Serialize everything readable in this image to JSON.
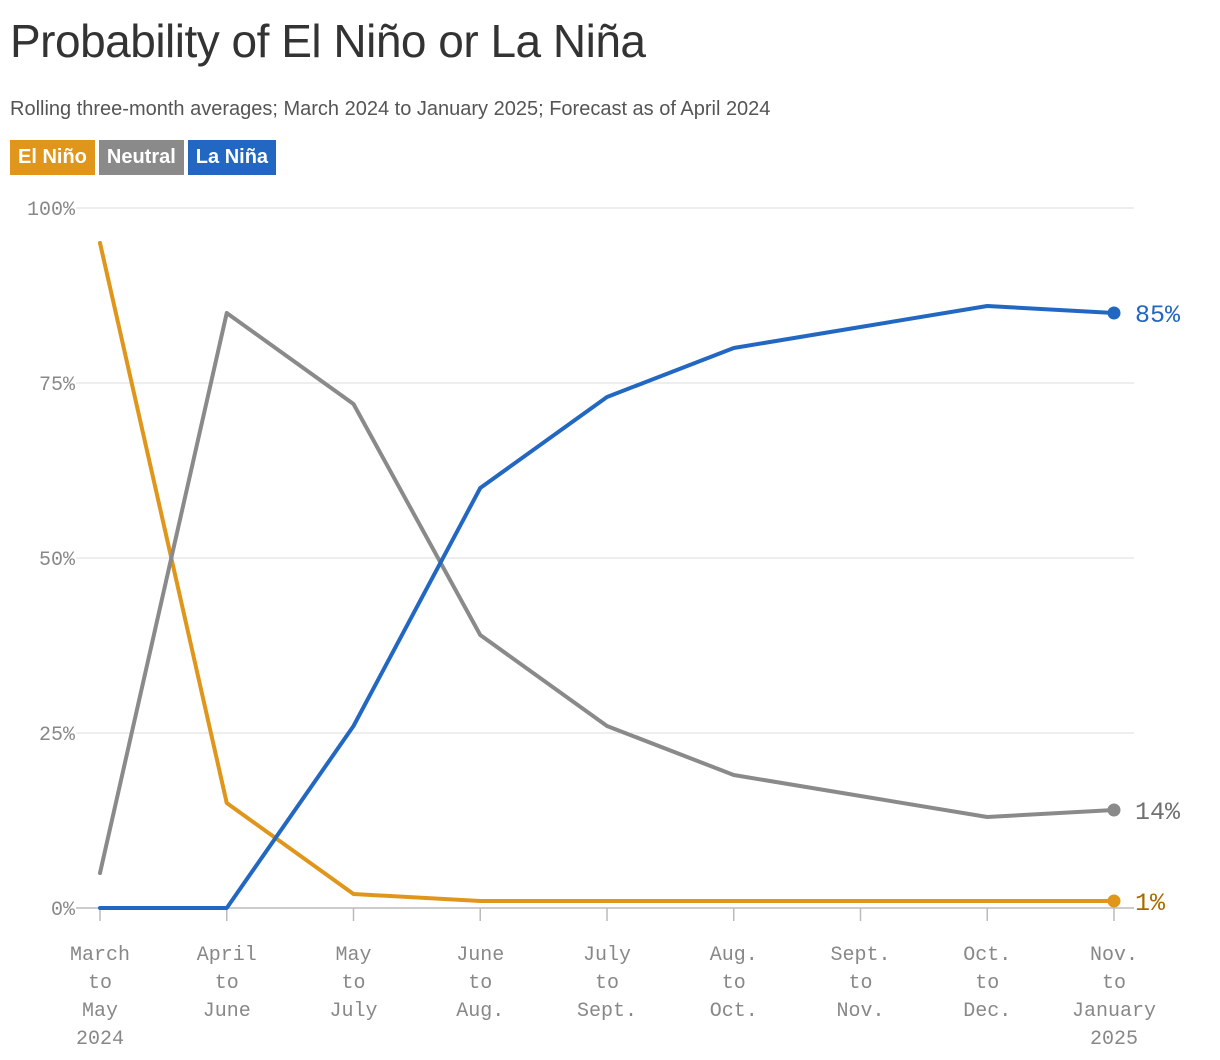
{
  "title": "Probability of El Niño or La Niña",
  "subtitle": "Rolling three-month averages; March 2024 to January 2025; Forecast as of April 2024",
  "legend": [
    {
      "label": "El Niño",
      "color": "#e0961a"
    },
    {
      "label": "Neutral",
      "color": "#8a8a8a"
    },
    {
      "label": "La Niña",
      "color": "#2268c2"
    }
  ],
  "chart_data": {
    "type": "line",
    "title": "Probability of El Niño or La Niña",
    "subtitle": "Rolling three-month averages; March 2024 to January 2025; Forecast as of April 2024",
    "categories": [
      [
        "March",
        "to",
        "May",
        "2024"
      ],
      [
        "April",
        "to",
        "June"
      ],
      [
        "May",
        "to",
        "July"
      ],
      [
        "June",
        "to",
        "Aug."
      ],
      [
        "July",
        "to",
        "Sept."
      ],
      [
        "Aug.",
        "to",
        "Oct."
      ],
      [
        "Sept.",
        "to",
        "Nov."
      ],
      [
        "Oct.",
        "to",
        "Dec."
      ],
      [
        "Nov.",
        "to",
        "January",
        "2025"
      ]
    ],
    "ylim": [
      0,
      100
    ],
    "yticks": [
      0,
      25,
      50,
      75,
      100
    ],
    "ytick_labels": [
      "0%",
      "25%",
      "50%",
      "75%",
      "100%"
    ],
    "grid": true,
    "series": [
      {
        "name": "El Niño",
        "color": "#e0961a",
        "label_color": "#a86a00",
        "values": [
          95,
          15,
          2,
          1,
          1,
          1,
          1,
          1,
          1
        ],
        "end_label": "1%"
      },
      {
        "name": "Neutral",
        "color": "#8a8a8a",
        "label_color": "#707070",
        "values": [
          5,
          85,
          72,
          39,
          26,
          19,
          16,
          13,
          14
        ],
        "end_label": "14%"
      },
      {
        "name": "La Niña",
        "color": "#2268c2",
        "label_color": "#2268c2",
        "values": [
          0,
          0,
          26,
          60,
          73,
          80,
          83,
          86,
          85
        ],
        "end_label": "85%"
      }
    ]
  }
}
